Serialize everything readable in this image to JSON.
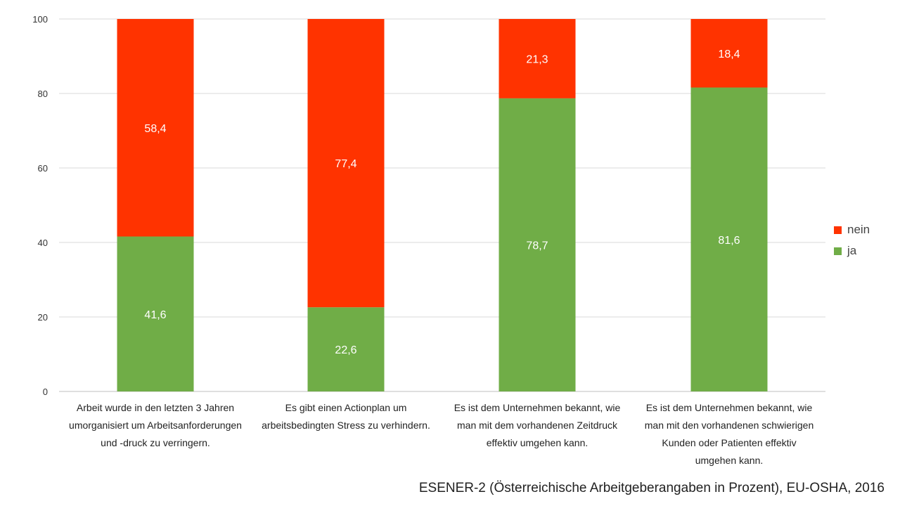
{
  "chart_data": {
    "type": "bar",
    "stacked": true,
    "categories": [
      "Arbeit wurde in den letzten 3 Jahren umorganisiert um Arbeitsanforderungen und -druck zu verringern.",
      "Es gibt einen Actionplan um arbeitsbedingten Stress zu verhindern.",
      "Es ist dem Unternehmen bekannt, wie man mit dem vorhandenen Zeitdruck effektiv umgehen kann.",
      "Es ist dem Unternehmen bekannt, wie man mit den vorhandenen schwierigen Kunden oder Patienten effektiv umgehen kann."
    ],
    "series": [
      {
        "name": "ja",
        "color": "#70ad47",
        "values": [
          41.6,
          22.6,
          78.7,
          81.6
        ],
        "labels": [
          "41,6",
          "22,6",
          "78,7",
          "81,6"
        ]
      },
      {
        "name": "nein",
        "color": "#ff3300",
        "values": [
          58.4,
          77.4,
          21.3,
          18.4
        ],
        "labels": [
          "58,4",
          "77,4",
          "21,3",
          "18,4"
        ]
      }
    ],
    "ylim": [
      0,
      100
    ],
    "yticks": [
      0,
      20,
      40,
      60,
      80,
      100
    ],
    "ytick_labels": [
      "0",
      "20",
      "40",
      "60",
      "80",
      "100"
    ],
    "grid": true,
    "legend_position": "right",
    "legend_order": [
      "nein",
      "ja"
    ]
  },
  "source_note": "ESENER-2 (Österreichische Arbeitgeberangaben in Prozent), EU-OSHA, 2016"
}
